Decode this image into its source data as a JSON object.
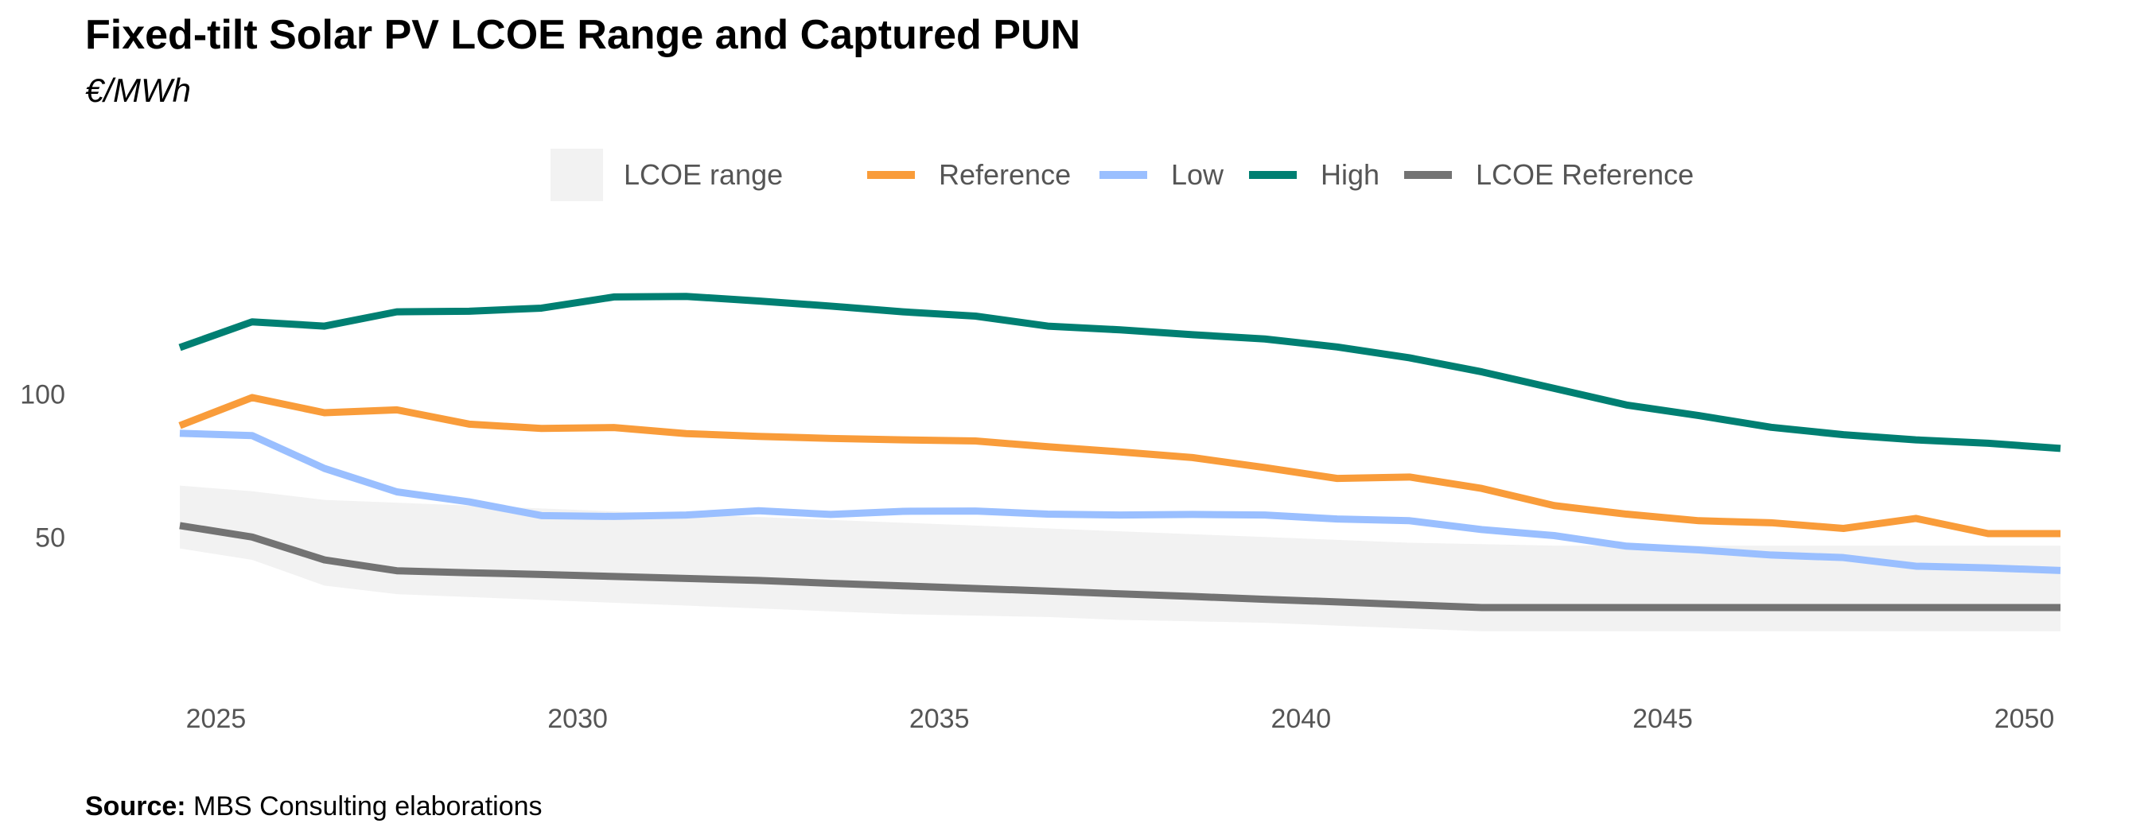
{
  "title": "Fixed-tilt Solar PV LCOE Range and Captured PUN",
  "subtitle": "€/MWh",
  "source_label": "Source:",
  "source_text": "MBS Consulting elaborations",
  "chart_data": {
    "type": "line",
    "title": "Fixed-tilt Solar PV LCOE Range and Captured PUN",
    "subtitle": "€/MWh",
    "x": [
      2024.5,
      2025.5,
      2026.5,
      2027.5,
      2028.5,
      2029.5,
      2030.5,
      2031.5,
      2032.5,
      2033.5,
      2034.5,
      2035.5,
      2036.5,
      2037.5,
      2038.5,
      2039.5,
      2040.5,
      2041.5,
      2042.5,
      2043.5,
      2044.5,
      2045.5,
      2046.5,
      2047.5,
      2048.5,
      2049.5,
      2050.5
    ],
    "xticks": [
      2025,
      2030,
      2035,
      2040,
      2045,
      2050
    ],
    "yticks": [
      50,
      100
    ],
    "xlim": [
      2024.5,
      2050.5
    ],
    "ylim": [
      5,
      160
    ],
    "grid": false,
    "legend_position": "top",
    "legend": [
      "LCOE range",
      "Reference",
      "Low",
      "High",
      "LCOE Reference"
    ],
    "range": {
      "name": "LCOE range",
      "color": "#f2f2f2",
      "lower": [
        46,
        42,
        33,
        30,
        29,
        28,
        27,
        26,
        25,
        24,
        23,
        22.5,
        22,
        21,
        20.5,
        20,
        19,
        18,
        17,
        17,
        17,
        17,
        17,
        17,
        17,
        17,
        17
      ],
      "upper": [
        68,
        66,
        63,
        62,
        61,
        60,
        59,
        58,
        57,
        56,
        55,
        54,
        53,
        52,
        51,
        50,
        49,
        48,
        47.5,
        47,
        47,
        47,
        47,
        47,
        47,
        47,
        47
      ]
    },
    "series": [
      {
        "name": "Reference",
        "color": "#f99c3a",
        "values": [
          89,
          98.8,
          93.5,
          94.5,
          89.5,
          88,
          88.3,
          86.2,
          85.2,
          84.5,
          84,
          83.6,
          81.6,
          79.8,
          77.8,
          74.3,
          70.5,
          71,
          67,
          61,
          58,
          55.7,
          55,
          53,
          56.5,
          51.2,
          51.2
        ]
      },
      {
        "name": "Low",
        "color": "#9abfff",
        "values": [
          86.3,
          85.5,
          74,
          65.8,
          62.3,
          57.5,
          57.2,
          57.7,
          59.2,
          57.9,
          59,
          59.1,
          58,
          57.7,
          57.9,
          57.7,
          56.3,
          55.7,
          52.6,
          50.5,
          46.8,
          45.5,
          43.7,
          42.8,
          39.8,
          39.2,
          38.3
        ]
      },
      {
        "name": "High",
        "color": "#007f72",
        "values": [
          116.3,
          125.3,
          123.8,
          128.8,
          129,
          130.1,
          134,
          134.2,
          132.6,
          130.8,
          128.8,
          127.3,
          123.8,
          122.5,
          120.8,
          119.3,
          116.5,
          112.7,
          107.8,
          102,
          96.2,
          92.5,
          88.4,
          85.8,
          84,
          82.8,
          81
        ]
      },
      {
        "name": "LCOE Reference",
        "color": "#737373",
        "values": [
          54,
          50,
          42,
          38.2,
          37.5,
          36.9,
          36.2,
          35.5,
          34.8,
          33.8,
          32.9,
          32,
          31.1,
          30.1,
          29.2,
          28.2,
          27.3,
          26.3,
          25.3,
          25.3,
          25.3,
          25.3,
          25.3,
          25.3,
          25.3,
          25.3,
          25.3
        ]
      }
    ]
  }
}
